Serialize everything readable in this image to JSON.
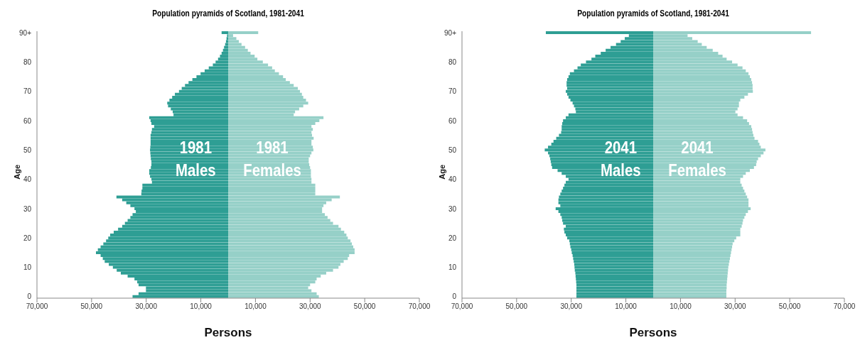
{
  "chart_data": [
    {
      "type": "bar",
      "title": "Population pyramids of Scotland, 1981-2041",
      "xlabel": "Persons",
      "ylabel": "Age",
      "orientation": "horizontal",
      "stacked": true,
      "categories": [
        "90+",
        null,
        null,
        null,
        null,
        null,
        null,
        null,
        null,
        null,
        "80",
        null,
        null,
        null,
        null,
        null,
        null,
        null,
        null,
        null,
        "70",
        null,
        null,
        null,
        null,
        null,
        null,
        null,
        null,
        null,
        "60",
        null,
        null,
        null,
        null,
        null,
        null,
        null,
        null,
        null,
        "50",
        null,
        null,
        null,
        null,
        null,
        null,
        null,
        null,
        null,
        "40",
        null,
        null,
        null,
        null,
        null,
        null,
        null,
        null,
        null,
        "30",
        null,
        null,
        null,
        null,
        null,
        null,
        null,
        null,
        null,
        "20",
        null,
        null,
        null,
        null,
        null,
        null,
        null,
        null,
        null,
        "10",
        null,
        null,
        null,
        null,
        null,
        null,
        null,
        null,
        null,
        "0"
      ],
      "series": [
        {
          "color": "#2e9e94",
          "values": [
            -2400,
            -400,
            -600,
            -800,
            -1100,
            -1500,
            -1900,
            -2400,
            -3000,
            -3700,
            -4600,
            -5600,
            -7100,
            -8600,
            -10100,
            -11600,
            -13100,
            -14500,
            -15800,
            -17000,
            -18000,
            -19500,
            -20500,
            -21500,
            -22300,
            -22000,
            -21000,
            -20300,
            -20000,
            -28900,
            -28400,
            -28100,
            -27100,
            -27900,
            -28100,
            -28400,
            -28400,
            -28400,
            -28400,
            -28500,
            -28600,
            -28500,
            -28400,
            -28300,
            -28100,
            -28100,
            -28300,
            -28900,
            -28900,
            -28600,
            -28100,
            -27900,
            -31400,
            -31400,
            -31700,
            -31800,
            -40900,
            -38800,
            -37300,
            -35800,
            -34300,
            -33800,
            -35000,
            -35800,
            -36800,
            -37800,
            -38800,
            -40300,
            -41900,
            -43200,
            -43900,
            -44700,
            -45700,
            -46700,
            -47700,
            -48400,
            -46700,
            -45900,
            -45200,
            -43700,
            -42200,
            -40800,
            -39300,
            -36800,
            -34300,
            -33300,
            -32800,
            -30100,
            -30100,
            -32800,
            -35000
          ]
        },
        {
          "color": "#96d0c8",
          "values": [
            11000,
            1800,
            3000,
            3900,
            4900,
            6200,
            7200,
            8200,
            9700,
            10700,
            12700,
            14600,
            16100,
            17100,
            18600,
            20100,
            21100,
            22600,
            24000,
            25500,
            26300,
            27000,
            27500,
            28500,
            29300,
            27500,
            26000,
            24500,
            24000,
            34900,
            33400,
            31900,
            30500,
            31000,
            30500,
            30700,
            31300,
            30500,
            30500,
            31000,
            31200,
            30500,
            30000,
            29500,
            29500,
            29700,
            30000,
            30300,
            30300,
            30300,
            30500,
            30500,
            31900,
            31900,
            31900,
            31900,
            40900,
            37900,
            35900,
            34900,
            34400,
            34400,
            35400,
            36400,
            37400,
            38400,
            40400,
            41300,
            42500,
            43300,
            43800,
            44800,
            45300,
            45800,
            46300,
            46300,
            44300,
            43800,
            42300,
            41100,
            40400,
            38400,
            35900,
            33900,
            32400,
            31900,
            30000,
            29300,
            30500,
            32400,
            33200
          ]
        }
      ],
      "xlim": [
        -70000,
        70000
      ],
      "xticks": [
        {
          "value": -70000,
          "label": "70,000"
        },
        {
          "value": -50000,
          "label": "50,000"
        },
        {
          "value": -30000,
          "label": "30,000"
        },
        {
          "value": -10000,
          "label": "10,000"
        },
        {
          "value": 10000,
          "label": "10,000"
        },
        {
          "value": 30000,
          "label": "30,000"
        },
        {
          "value": 50000,
          "label": "50,000"
        },
        {
          "value": 70000,
          "label": "70,000"
        }
      ],
      "annotations": [
        "1981 Males",
        "1981 Females"
      ]
    },
    {
      "type": "bar",
      "title": "Population pyramids of Scotland, 1981-2041",
      "xlabel": "Persons",
      "ylabel": "Age",
      "orientation": "horizontal",
      "stacked": true,
      "categories": [
        "90+",
        null,
        null,
        null,
        null,
        null,
        null,
        null,
        null,
        null,
        "80",
        null,
        null,
        null,
        null,
        null,
        null,
        null,
        null,
        null,
        "70",
        null,
        null,
        null,
        null,
        null,
        null,
        null,
        null,
        null,
        "60",
        null,
        null,
        null,
        null,
        null,
        null,
        null,
        null,
        null,
        "50",
        null,
        null,
        null,
        null,
        null,
        null,
        null,
        null,
        null,
        "40",
        null,
        null,
        null,
        null,
        null,
        null,
        null,
        null,
        null,
        "30",
        null,
        null,
        null,
        null,
        null,
        null,
        null,
        null,
        null,
        "20",
        null,
        null,
        null,
        null,
        null,
        null,
        null,
        null,
        null,
        "10",
        null,
        null,
        null,
        null,
        null,
        null,
        null,
        null,
        null,
        "0"
      ],
      "series": [
        {
          "color": "#2e9e94",
          "values": [
            -39300,
            -8900,
            -10400,
            -11900,
            -13600,
            -15600,
            -17400,
            -19200,
            -21200,
            -22600,
            -24600,
            -26500,
            -27700,
            -29000,
            -30500,
            -31000,
            -31500,
            -31700,
            -31700,
            -31500,
            -32000,
            -31500,
            -31000,
            -30300,
            -29500,
            -29000,
            -28500,
            -28300,
            -31000,
            -32000,
            -33000,
            -33300,
            -33500,
            -33500,
            -33700,
            -34500,
            -35500,
            -36500,
            -37300,
            -38500,
            -39700,
            -38500,
            -38000,
            -37700,
            -37500,
            -37300,
            -37000,
            -35000,
            -33500,
            -32000,
            -31000,
            -32000,
            -32500,
            -33000,
            -33500,
            -34000,
            -34500,
            -34700,
            -34700,
            -34000,
            -35700,
            -34700,
            -34000,
            -33500,
            -33300,
            -33000,
            -32000,
            -32700,
            -32500,
            -32000,
            -31500,
            -30700,
            -30500,
            -30300,
            -30000,
            -29800,
            -29500,
            -29300,
            -29100,
            -28900,
            -28800,
            -28700,
            -28500,
            -28400,
            -28300,
            -28200,
            -28100,
            -28100,
            -28100,
            -28100,
            -28100
          ]
        },
        {
          "color": "#96d0c8",
          "values": [
            57800,
            12600,
            14300,
            16300,
            17800,
            19600,
            21800,
            23800,
            25400,
            26900,
            28900,
            30900,
            32700,
            33900,
            34900,
            35400,
            35900,
            36200,
            36400,
            36400,
            36500,
            34700,
            33400,
            31900,
            31400,
            31400,
            30900,
            30100,
            30900,
            32900,
            34400,
            35100,
            35900,
            36200,
            36400,
            36700,
            37100,
            38400,
            38900,
            39400,
            41100,
            40400,
            39400,
            38400,
            37900,
            37700,
            36900,
            35400,
            33900,
            32900,
            31900,
            31900,
            32400,
            32900,
            33400,
            33900,
            34400,
            34900,
            34900,
            34900,
            35700,
            34700,
            33900,
            33400,
            32900,
            32700,
            32400,
            31900,
            31900,
            31900,
            30400,
            29700,
            29100,
            28900,
            28700,
            28500,
            28300,
            28100,
            27900,
            27700,
            27500,
            27400,
            27300,
            27200,
            27100,
            27000,
            26900,
            26900,
            26800,
            26800,
            26800
          ]
        }
      ],
      "xlim": [
        -70000,
        70000
      ],
      "xticks": [
        {
          "value": -70000,
          "label": "70,000"
        },
        {
          "value": -50000,
          "label": "50,000"
        },
        {
          "value": -30000,
          "label": "30,000"
        },
        {
          "value": -10000,
          "label": "10,000"
        },
        {
          "value": 10000,
          "label": "10,000"
        },
        {
          "value": 30000,
          "label": "30,000"
        },
        {
          "value": 50000,
          "label": "50,000"
        },
        {
          "value": 70000,
          "label": "70,000"
        }
      ],
      "annotations": [
        "2041 Males",
        "2041 Females"
      ]
    }
  ]
}
